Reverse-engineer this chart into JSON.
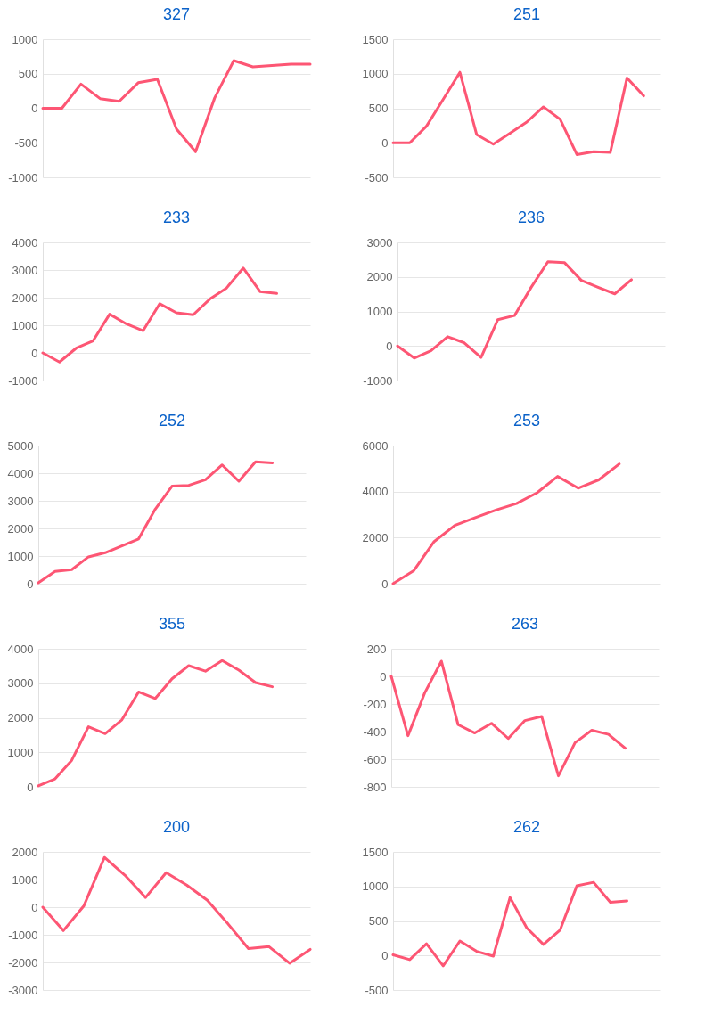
{
  "chart_data": [
    {
      "type": "line",
      "title": "327",
      "categories": [
        null,
        null,
        null,
        null,
        null,
        null,
        null,
        null,
        null,
        null,
        null,
        null,
        null,
        null,
        null
      ],
      "series": [
        {
          "color": "#fd5674",
          "values": [
            0,
            0,
            350,
            140,
            100,
            370,
            420,
            -300,
            -630,
            150,
            690,
            600,
            620,
            640,
            640
          ]
        }
      ],
      "ylim": [
        -1000,
        1000
      ],
      "yticks": [
        -1000,
        -500,
        0,
        500,
        1000
      ],
      "grid": "y",
      "tick_labels": "y"
    },
    {
      "type": "line",
      "title": "251",
      "categories": [
        null,
        null,
        null,
        null,
        null,
        null,
        null,
        null,
        null,
        null,
        null,
        null,
        null,
        null,
        null,
        null,
        null
      ],
      "series": [
        {
          "color": "#fd5674",
          "values": [
            0,
            0,
            240,
            630,
            1020,
            120,
            -20,
            140,
            300,
            520,
            340,
            -170,
            -130,
            -140,
            940,
            680,
            null
          ]
        }
      ],
      "ylim": [
        -500,
        1500
      ],
      "yticks": [
        -500,
        0,
        500,
        1000,
        1500
      ],
      "grid": "y",
      "tick_labels": "y"
    },
    {
      "type": "line",
      "title": "233",
      "categories": [
        null,
        null,
        null,
        null,
        null,
        null,
        null,
        null,
        null,
        null,
        null,
        null,
        null,
        null,
        null,
        null,
        null
      ],
      "series": [
        {
          "color": "#fd5674",
          "values": [
            0,
            -330,
            170,
            430,
            1400,
            1050,
            800,
            1780,
            1450,
            1380,
            1950,
            2350,
            3070,
            2220,
            2150,
            null,
            null
          ]
        }
      ],
      "ylim": [
        -1000,
        4000
      ],
      "yticks": [
        -1000,
        0,
        1000,
        2000,
        3000,
        4000
      ],
      "grid": "y",
      "tick_labels": "y"
    },
    {
      "type": "line",
      "title": "236",
      "categories": [
        null,
        null,
        null,
        null,
        null,
        null,
        null,
        null,
        null,
        null,
        null,
        null,
        null,
        null,
        null,
        null,
        null
      ],
      "series": [
        {
          "color": "#fd5674",
          "values": [
            0,
            -350,
            -140,
            270,
            90,
            -330,
            760,
            880,
            1700,
            2440,
            2410,
            1900,
            1700,
            1510,
            1920,
            null,
            null
          ]
        }
      ],
      "ylim": [
        -1000,
        3000
      ],
      "yticks": [
        -1000,
        0,
        1000,
        2000,
        3000
      ],
      "grid": "y",
      "tick_labels": "y"
    },
    {
      "type": "line",
      "title": "252",
      "categories": [
        null,
        null,
        null,
        null,
        null,
        null,
        null,
        null,
        null,
        null,
        null,
        null,
        null,
        null,
        null,
        null,
        null
      ],
      "series": [
        {
          "color": "#fd5674",
          "values": [
            30,
            440,
            510,
            970,
            1120,
            1370,
            1620,
            2700,
            3530,
            3560,
            3760,
            4300,
            3710,
            4410,
            4370,
            null,
            null
          ]
        }
      ],
      "ylim": [
        0,
        5000
      ],
      "yticks": [
        0,
        1000,
        2000,
        3000,
        4000,
        5000
      ],
      "grid": "y",
      "tick_labels": "y"
    },
    {
      "type": "line",
      "title": "253",
      "categories": [
        null,
        null,
        null,
        null,
        null,
        null,
        null,
        null,
        null,
        null,
        null,
        null,
        null,
        null
      ],
      "series": [
        {
          "color": "#fd5674",
          "values": [
            0,
            560,
            1830,
            2530,
            2870,
            3200,
            3480,
            3950,
            4660,
            4150,
            4510,
            5200,
            null,
            null
          ]
        }
      ],
      "ylim": [
        0,
        6000
      ],
      "yticks": [
        0,
        2000,
        4000,
        6000
      ],
      "grid": "y",
      "tick_labels": "y"
    },
    {
      "type": "line",
      "title": "355",
      "categories": [
        null,
        null,
        null,
        null,
        null,
        null,
        null,
        null,
        null,
        null,
        null,
        null,
        null,
        null,
        null,
        null,
        null
      ],
      "series": [
        {
          "color": "#fd5674",
          "values": [
            30,
            230,
            770,
            1740,
            1540,
            1940,
            2750,
            2560,
            3130,
            3510,
            3350,
            3660,
            3380,
            3020,
            2900,
            null,
            null
          ]
        }
      ],
      "ylim": [
        0,
        4000
      ],
      "yticks": [
        0,
        1000,
        2000,
        3000,
        4000
      ],
      "grid": "y",
      "tick_labels": "y"
    },
    {
      "type": "line",
      "title": "263",
      "categories": [
        null,
        null,
        null,
        null,
        null,
        null,
        null,
        null,
        null,
        null,
        null,
        null,
        null,
        null,
        null,
        null,
        null
      ],
      "series": [
        {
          "color": "#fd5674",
          "values": [
            0,
            -430,
            -120,
            110,
            -350,
            -410,
            -340,
            -450,
            -320,
            -290,
            -720,
            -480,
            -390,
            -420,
            -520,
            null,
            null
          ]
        }
      ],
      "ylim": [
        -800,
        200
      ],
      "yticks": [
        -800,
        -600,
        -400,
        -200,
        0,
        200
      ],
      "grid": "y",
      "tick_labels": "y"
    },
    {
      "type": "line",
      "title": "200",
      "categories": [
        null,
        null,
        null,
        null,
        null,
        null,
        null,
        null,
        null,
        null,
        null,
        null,
        null,
        null
      ],
      "series": [
        {
          "color": "#fd5674",
          "values": [
            0,
            -850,
            50,
            1800,
            1150,
            350,
            1250,
            800,
            250,
            -600,
            -1500,
            -1430,
            -2030,
            -1530
          ]
        }
      ],
      "ylim": [
        -3000,
        2000
      ],
      "yticks": [
        -3000,
        -2000,
        -1000,
        0,
        1000,
        2000
      ],
      "grid": "y",
      "tick_labels": "y"
    },
    {
      "type": "line",
      "title": "262",
      "categories": [
        null,
        null,
        null,
        null,
        null,
        null,
        null,
        null,
        null,
        null,
        null,
        null,
        null,
        null,
        null,
        null,
        null
      ],
      "series": [
        {
          "color": "#fd5674",
          "values": [
            10,
            -60,
            170,
            -150,
            210,
            60,
            -10,
            840,
            400,
            160,
            370,
            1010,
            1060,
            770,
            790,
            null,
            null
          ]
        }
      ],
      "ylim": [
        -500,
        1500
      ],
      "yticks": [
        -500,
        0,
        500,
        1000,
        1500
      ],
      "grid": "y",
      "tick_labels": "y"
    }
  ]
}
